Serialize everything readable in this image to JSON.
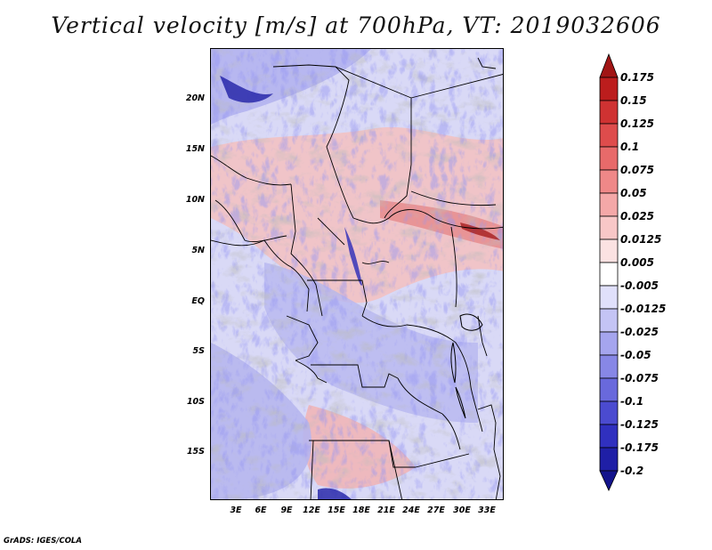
{
  "title": "Vertical velocity [m/s] at 700hPa, VT: 2019032606",
  "credit": "GrADS: IGES/COLA",
  "map": {
    "variable": "Vertical velocity",
    "units": "m/s",
    "level": "700hPa",
    "valid_time": "2019032606",
    "latitude_labels": [
      "20N",
      "15N",
      "10N",
      "5N",
      "EQ",
      "5S",
      "10S",
      "15S"
    ],
    "longitude_labels": [
      "3E",
      "6E",
      "9E",
      "12E",
      "15E",
      "18E",
      "21E",
      "24E",
      "27E",
      "30E",
      "33E"
    ]
  },
  "colorbar": {
    "labels": [
      "0.175",
      "0.15",
      "0.125",
      "0.1",
      "0.075",
      "0.05",
      "0.025",
      "0.0125",
      "0.005",
      "-0.005",
      "-0.0125",
      "-0.025",
      "-0.05",
      "-0.075",
      "-0.1",
      "-0.125",
      "-0.175",
      "-0.2"
    ],
    "colors": [
      "#a11515",
      "#bc1d1d",
      "#cf3232",
      "#de4c4c",
      "#e86a6a",
      "#ef8888",
      "#f4a8a8",
      "#f8c7c7",
      "#fbe2e2",
      "#ffffff",
      "#e0e0fb",
      "#c4c4f5",
      "#a5a5ee",
      "#8787e6",
      "#6969dc",
      "#4b4bd0",
      "#3030bf",
      "#1f1fa6",
      "#13138c"
    ]
  }
}
